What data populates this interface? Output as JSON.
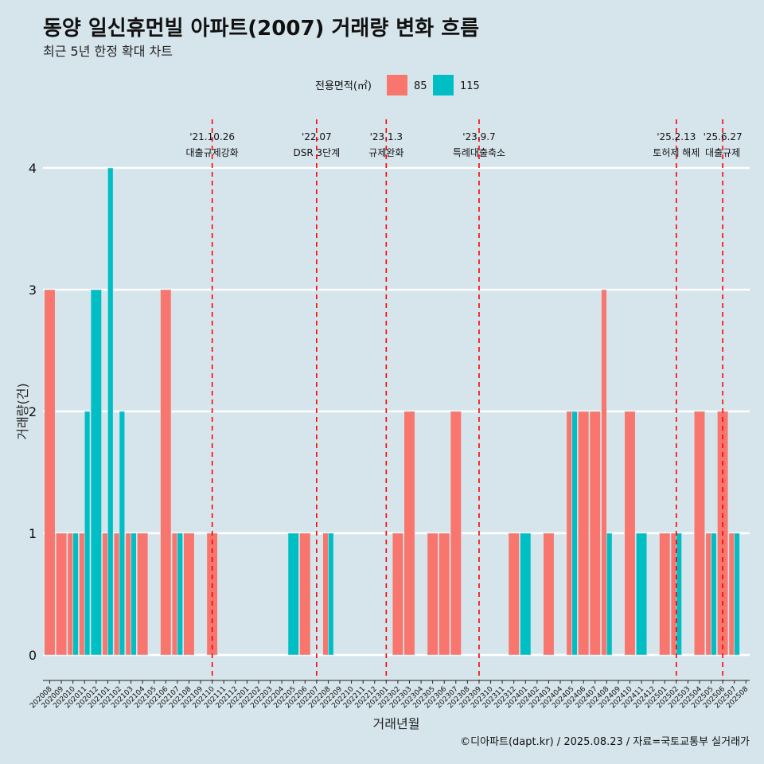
{
  "chart_data": {
    "type": "bar",
    "title": "동양 일신휴먼빌 아파트(2007) 거래량 변화 흐름",
    "subtitle": "최근 5년 한정 확대 차트",
    "xlabel": "거래년월",
    "ylabel": "거래량(건)",
    "ylim": [
      0,
      4
    ],
    "yticks": [
      0,
      1,
      2,
      3,
      4
    ],
    "grid": true,
    "legend": {
      "title": "전용면적(㎡)",
      "placement": "top"
    },
    "categories": [
      "202008",
      "202009",
      "202010",
      "202011",
      "202012",
      "202101",
      "202102",
      "202103",
      "202104",
      "202105",
      "202106",
      "202107",
      "202108",
      "202109",
      "202110",
      "202111",
      "202112",
      "202201",
      "202202",
      "202203",
      "202204",
      "202205",
      "202206",
      "202207",
      "202208",
      "202209",
      "202210",
      "202211",
      "202212",
      "202301",
      "202302",
      "202303",
      "202304",
      "202305",
      "202306",
      "202307",
      "202308",
      "202309",
      "202310",
      "202311",
      "202312",
      "202401",
      "202402",
      "202403",
      "202404",
      "202405",
      "202406",
      "202407",
      "202408",
      "202409",
      "202410",
      "202411",
      "202412",
      "202501",
      "202502",
      "202503",
      "202504",
      "202505",
      "202506",
      "202507",
      "202508"
    ],
    "series": [
      {
        "name": "85",
        "color": "#f8766d",
        "values": [
          3,
          1,
          1,
          1,
          0,
          1,
          1,
          1,
          1,
          0,
          3,
          1,
          1,
          0,
          1,
          0,
          0,
          0,
          0,
          0,
          0,
          0,
          1,
          0,
          1,
          0,
          0,
          0,
          0,
          0,
          1,
          2,
          0,
          1,
          1,
          2,
          0,
          0,
          0,
          0,
          1,
          0,
          0,
          1,
          0,
          2,
          2,
          2,
          3,
          0,
          2,
          0,
          0,
          1,
          1,
          0,
          2,
          1,
          2,
          1,
          0
        ]
      },
      {
        "name": "115",
        "color": "#00bfc4",
        "values": [
          0,
          0,
          1,
          2,
          3,
          4,
          2,
          1,
          0,
          0,
          0,
          1,
          0,
          0,
          0,
          0,
          0,
          0,
          0,
          0,
          0,
          1,
          0,
          0,
          1,
          0,
          0,
          0,
          0,
          0,
          0,
          0,
          0,
          0,
          0,
          0,
          0,
          0,
          0,
          0,
          0,
          1,
          0,
          0,
          0,
          2,
          0,
          0,
          1,
          0,
          0,
          1,
          0,
          0,
          1,
          0,
          0,
          1,
          0,
          1,
          0
        ]
      }
    ],
    "events": [
      {
        "x": "202110",
        "date": "'21.10.26",
        "label": "대출규제강화"
      },
      {
        "x": "202207",
        "date": "'22.07",
        "label": "DSR 3단계"
      },
      {
        "x": "202301",
        "date": "'23.1.3",
        "label": "규제완화"
      },
      {
        "x": "202309",
        "date": "'23.9.7",
        "label": "특례대출축소"
      },
      {
        "x": "202502",
        "date": "'25.2.13",
        "label": "토허제 해제"
      },
      {
        "x": "202506",
        "date": "'25.6.27",
        "label": "대출규제"
      }
    ],
    "caption": "©디아파트(dapt.kr) / 2025.08.23 / 자료=국토교통부 실거래가"
  }
}
